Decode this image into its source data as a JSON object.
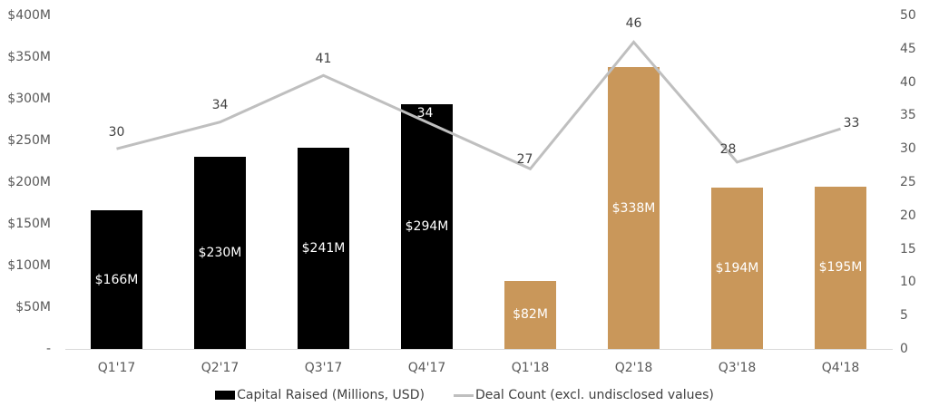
{
  "chart_data": {
    "type": "bar",
    "title": "",
    "xlabel": "",
    "ylabel": "",
    "categories": [
      "Q1'17",
      "Q2'17",
      "Q3'17",
      "Q4'17",
      "Q1'18",
      "Q2'18",
      "Q3'18",
      "Q4'18"
    ],
    "series": [
      {
        "name": "Capital Raised (Millions, USD)",
        "type": "bar",
        "axis": "left",
        "values": [
          166,
          230,
          241,
          294,
          82,
          338,
          194,
          195
        ],
        "labels": [
          "$166M",
          "$230M",
          "$241M",
          "$294M",
          "$82M",
          "$338M",
          "$194M",
          "$195M"
        ],
        "colors": [
          "#000000",
          "#000000",
          "#000000",
          "#000000",
          "#c9975a",
          "#c9975a",
          "#c9975a",
          "#c9975a"
        ]
      },
      {
        "name": "Deal Count (excl. undisclosed values)",
        "type": "line",
        "axis": "right",
        "values": [
          30,
          34,
          41,
          34,
          27,
          46,
          28,
          33
        ],
        "labels": [
          "30",
          "34",
          "41",
          "34",
          "27",
          "46",
          "28",
          "33"
        ],
        "color": "#bfbfbf"
      }
    ],
    "y_left": {
      "ylim": [
        0,
        400
      ],
      "ticks": [
        "-",
        "$50M",
        "$100M",
        "$150M",
        "$200M",
        "$250M",
        "$300M",
        "$350M",
        "$400M"
      ]
    },
    "y_right": {
      "ylim": [
        0,
        50
      ],
      "ticks": [
        "0",
        "5",
        "10",
        "15",
        "20",
        "25",
        "30",
        "35",
        "40",
        "45",
        "50"
      ]
    },
    "grid": false,
    "legend_position": "bottom"
  },
  "legend": {
    "bar_label": "Capital Raised (Millions, USD)",
    "line_label": "Deal Count (excl. undisclosed values)"
  }
}
